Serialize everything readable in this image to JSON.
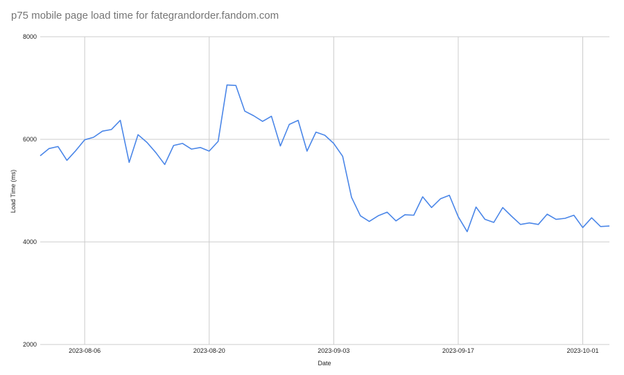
{
  "chart_data": {
    "type": "line",
    "title": "p75 mobile page load time for fategrandorder.fandom.com",
    "xlabel": "Date",
    "ylabel": "Load Time (ms)",
    "ylim": [
      2000,
      8000
    ],
    "yticks": [
      2000,
      4000,
      6000,
      8000
    ],
    "xticks": [
      "2023-08-06",
      "2023-08-20",
      "2023-09-03",
      "2023-09-17",
      "2023-10-01"
    ],
    "grid": true,
    "legend": "none",
    "color": "#4a86e8",
    "series": [
      {
        "x": [
          "2023-08-01",
          "2023-08-02",
          "2023-08-03",
          "2023-08-04",
          "2023-08-05",
          "2023-08-06",
          "2023-08-07",
          "2023-08-08",
          "2023-08-09",
          "2023-08-10",
          "2023-08-11",
          "2023-08-12",
          "2023-08-13",
          "2023-08-14",
          "2023-08-15",
          "2023-08-16",
          "2023-08-17",
          "2023-08-18",
          "2023-08-19",
          "2023-08-20",
          "2023-08-21",
          "2023-08-22",
          "2023-08-23",
          "2023-08-24",
          "2023-08-25",
          "2023-08-26",
          "2023-08-27",
          "2023-08-28",
          "2023-08-29",
          "2023-08-30",
          "2023-08-31",
          "2023-09-01",
          "2023-09-02",
          "2023-09-03",
          "2023-09-04",
          "2023-09-05",
          "2023-09-06",
          "2023-09-07",
          "2023-09-08",
          "2023-09-09",
          "2023-09-10",
          "2023-09-11",
          "2023-09-12",
          "2023-09-13",
          "2023-09-14",
          "2023-09-15",
          "2023-09-16",
          "2023-09-17",
          "2023-09-18",
          "2023-09-19",
          "2023-09-20",
          "2023-09-21",
          "2023-09-22",
          "2023-09-23",
          "2023-09-24",
          "2023-09-25",
          "2023-09-26",
          "2023-09-27",
          "2023-09-28",
          "2023-09-29",
          "2023-09-30",
          "2023-10-01",
          "2023-10-02",
          "2023-10-03",
          "2023-10-04"
        ],
        "values": [
          5680,
          5820,
          5860,
          5590,
          5780,
          5990,
          6040,
          6160,
          6190,
          6370,
          5550,
          6090,
          5940,
          5740,
          5510,
          5880,
          5920,
          5810,
          5840,
          5770,
          5960,
          7060,
          7050,
          6550,
          6460,
          6350,
          6450,
          5870,
          6290,
          6370,
          5770,
          6140,
          6080,
          5920,
          5670,
          4870,
          4510,
          4400,
          4510,
          4580,
          4410,
          4530,
          4520,
          4880,
          4670,
          4840,
          4910,
          4490,
          4200,
          4680,
          4440,
          4380,
          4670,
          4500,
          4340,
          4370,
          4340,
          4540,
          4440,
          4460,
          4520,
          4280,
          4470,
          4300,
          4310
        ]
      }
    ]
  }
}
